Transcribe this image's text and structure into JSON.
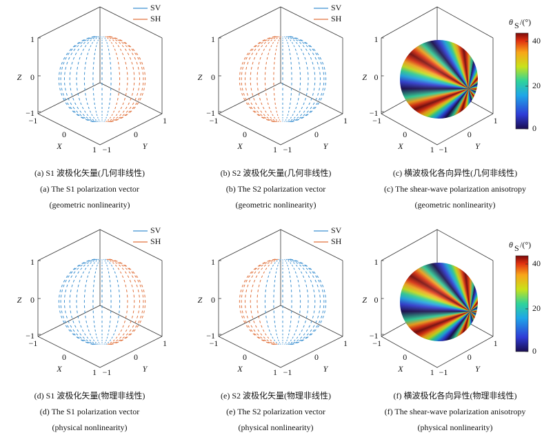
{
  "panels": [
    {
      "kind": "vectors",
      "legend": [
        "SV",
        "SH"
      ],
      "axes": {
        "z_label": "Z",
        "x_label": "X",
        "y_label": "Y",
        "z_ticks": [
          "1",
          "0",
          "−1"
        ],
        "x_ticks": [
          "−1",
          "0",
          "1"
        ],
        "y_ticks": [
          "−1",
          "0",
          "1"
        ]
      },
      "caption": [
        "(a) S1 波极化矢量(几何非线性)",
        "(a) The S1 polarization vector",
        "(geometric nonlinearity)"
      ]
    },
    {
      "kind": "vectors",
      "legend": [
        "SV",
        "SH"
      ],
      "axes": {
        "z_label": "Z",
        "x_label": "X",
        "y_label": "Y",
        "z_ticks": [
          "1",
          "0",
          "−1"
        ],
        "x_ticks": [
          "−1",
          "0",
          "1"
        ],
        "y_ticks": [
          "−1",
          "0",
          "1"
        ]
      },
      "caption": [
        "(b) S2 波极化矢量(几何非线性)",
        "(b) The S2 polarization vector",
        "(geometric nonlinearity)"
      ]
    },
    {
      "kind": "surface",
      "colorbar": {
        "symbol": "θ",
        "subscript": "S",
        "unit": "/(°)",
        "ticks": [
          "40",
          "20",
          "0"
        ]
      },
      "axes": {
        "z_label": "Z",
        "x_label": "X",
        "y_label": "Y",
        "z_ticks": [
          "1",
          "0",
          "−1"
        ],
        "x_ticks": [
          "−1",
          "0",
          "1"
        ],
        "y_ticks": [
          "−1",
          "0",
          "1"
        ]
      },
      "caption": [
        "(c) 横波极化各向异性(几何非线性)",
        "(c) The shear-wave polarization anisotropy",
        "(geometric nonlinearity)"
      ]
    },
    {
      "kind": "vectors",
      "legend": [
        "SV",
        "SH"
      ],
      "axes": {
        "z_label": "Z",
        "x_label": "X",
        "y_label": "Y",
        "z_ticks": [
          "1",
          "0",
          "−1"
        ],
        "x_ticks": [
          "−1",
          "0",
          "1"
        ],
        "y_ticks": [
          "−1",
          "0",
          "1"
        ]
      },
      "caption": [
        "(d) S1 波极化矢量(物理非线性)",
        "(d) The S1 polarization vector",
        "(physical nonlinearity)"
      ]
    },
    {
      "kind": "vectors",
      "legend": [
        "SV",
        "SH"
      ],
      "axes": {
        "z_label": "Z",
        "x_label": "X",
        "y_label": "Y",
        "z_ticks": [
          "1",
          "0",
          "−1"
        ],
        "x_ticks": [
          "−1",
          "0",
          "1"
        ],
        "y_ticks": [
          "−1",
          "0",
          "1"
        ]
      },
      "caption": [
        "(e) S2 波极化矢量(物理非线性)",
        "(e) The S2 polarization vector",
        "(physical nonlinearity)"
      ]
    },
    {
      "kind": "surface",
      "colorbar": {
        "symbol": "θ",
        "subscript": "S",
        "unit": "/(°)",
        "ticks": [
          "40",
          "20",
          "0"
        ]
      },
      "axes": {
        "z_label": "Z",
        "x_label": "X",
        "y_label": "Y",
        "z_ticks": [
          "1",
          "0",
          "−1"
        ],
        "x_ticks": [
          "−1",
          "0",
          "1"
        ],
        "y_ticks": [
          "−1",
          "0",
          "1"
        ]
      },
      "caption": [
        "(f) 横波极化各向异性(物理非线性)",
        "(f) The shear-wave polarization anisotropy",
        "(physical nonlinearity)"
      ]
    }
  ]
}
